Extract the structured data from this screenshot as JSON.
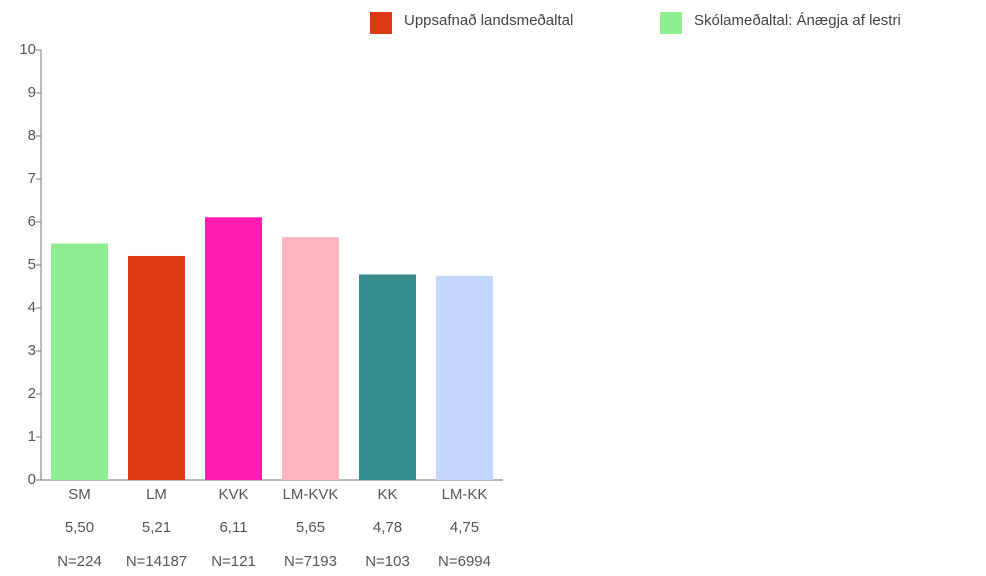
{
  "chart_data": {
    "type": "bar",
    "categories": [
      "SM",
      "LM",
      "KVK",
      "LM-KVK",
      "KK",
      "LM-KK"
    ],
    "values": [
      5.5,
      5.21,
      6.11,
      5.65,
      4.78,
      4.75
    ],
    "value_labels": [
      "5,50",
      "5,21",
      "6,11",
      "5,65",
      "4,78",
      "4,75"
    ],
    "n_labels": [
      "N=224",
      "N=14187",
      "N=121",
      "N=7193",
      "N=103",
      "N=6994"
    ],
    "colors": [
      "#90ee90",
      "#dd3a14",
      "#ff1cae",
      "#ffb6c1",
      "#358d8d",
      "#c6d7ff"
    ],
    "legend": [
      {
        "name": "Uppsafnað landsmeðaltal",
        "color": "#dd3a14"
      },
      {
        "name": "Skólameðaltal: Ánægja af lestri",
        "color": "#90ee90"
      }
    ],
    "legend_position": "top-right",
    "ylim": [
      0,
      10
    ],
    "yticks": [
      0,
      1,
      2,
      3,
      4,
      5,
      6,
      7,
      8,
      9,
      10
    ],
    "grid": false
  }
}
